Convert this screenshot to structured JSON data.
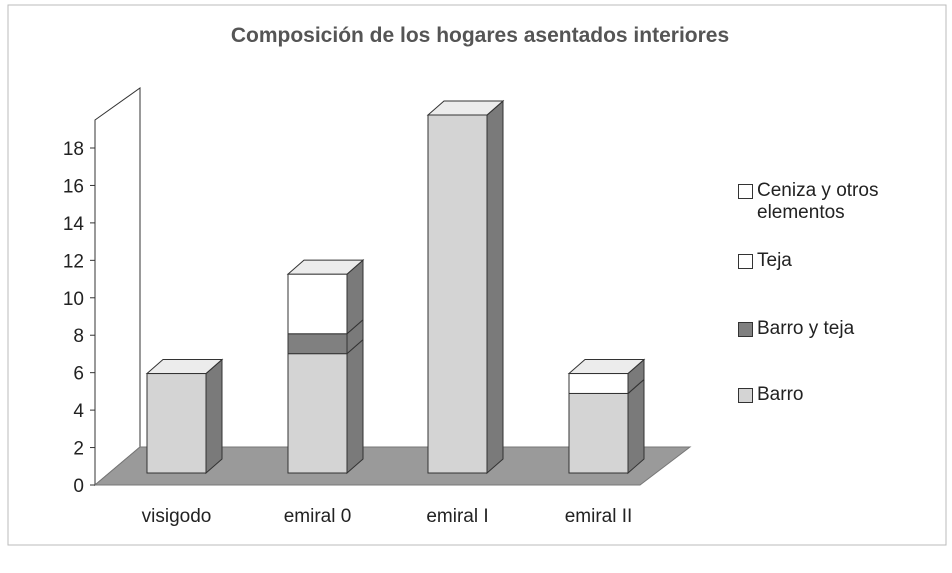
{
  "chart_data": {
    "type": "bar3d-stacked",
    "title": "Composición de los hogares asentados interiores",
    "categories": [
      "visigodo",
      "emiral 0",
      "emiral I",
      "emiral II"
    ],
    "series": [
      {
        "name": "Barro",
        "color": "#d4d4d4",
        "values": [
          5,
          6,
          18,
          4
        ]
      },
      {
        "name": "Barro y teja",
        "color": "#808080",
        "values": [
          0,
          1,
          0,
          0
        ]
      },
      {
        "name": "Teja",
        "color": "#ffffff",
        "values": [
          0,
          3,
          0,
          1
        ]
      },
      {
        "name": "Ceniza y otros elementos",
        "color": "#ffffff",
        "values": [
          0,
          0,
          0,
          0
        ]
      }
    ],
    "ylim": [
      0,
      18
    ],
    "yticks": [
      0,
      2,
      4,
      6,
      8,
      10,
      12,
      14,
      16,
      18
    ],
    "legend": "right"
  }
}
